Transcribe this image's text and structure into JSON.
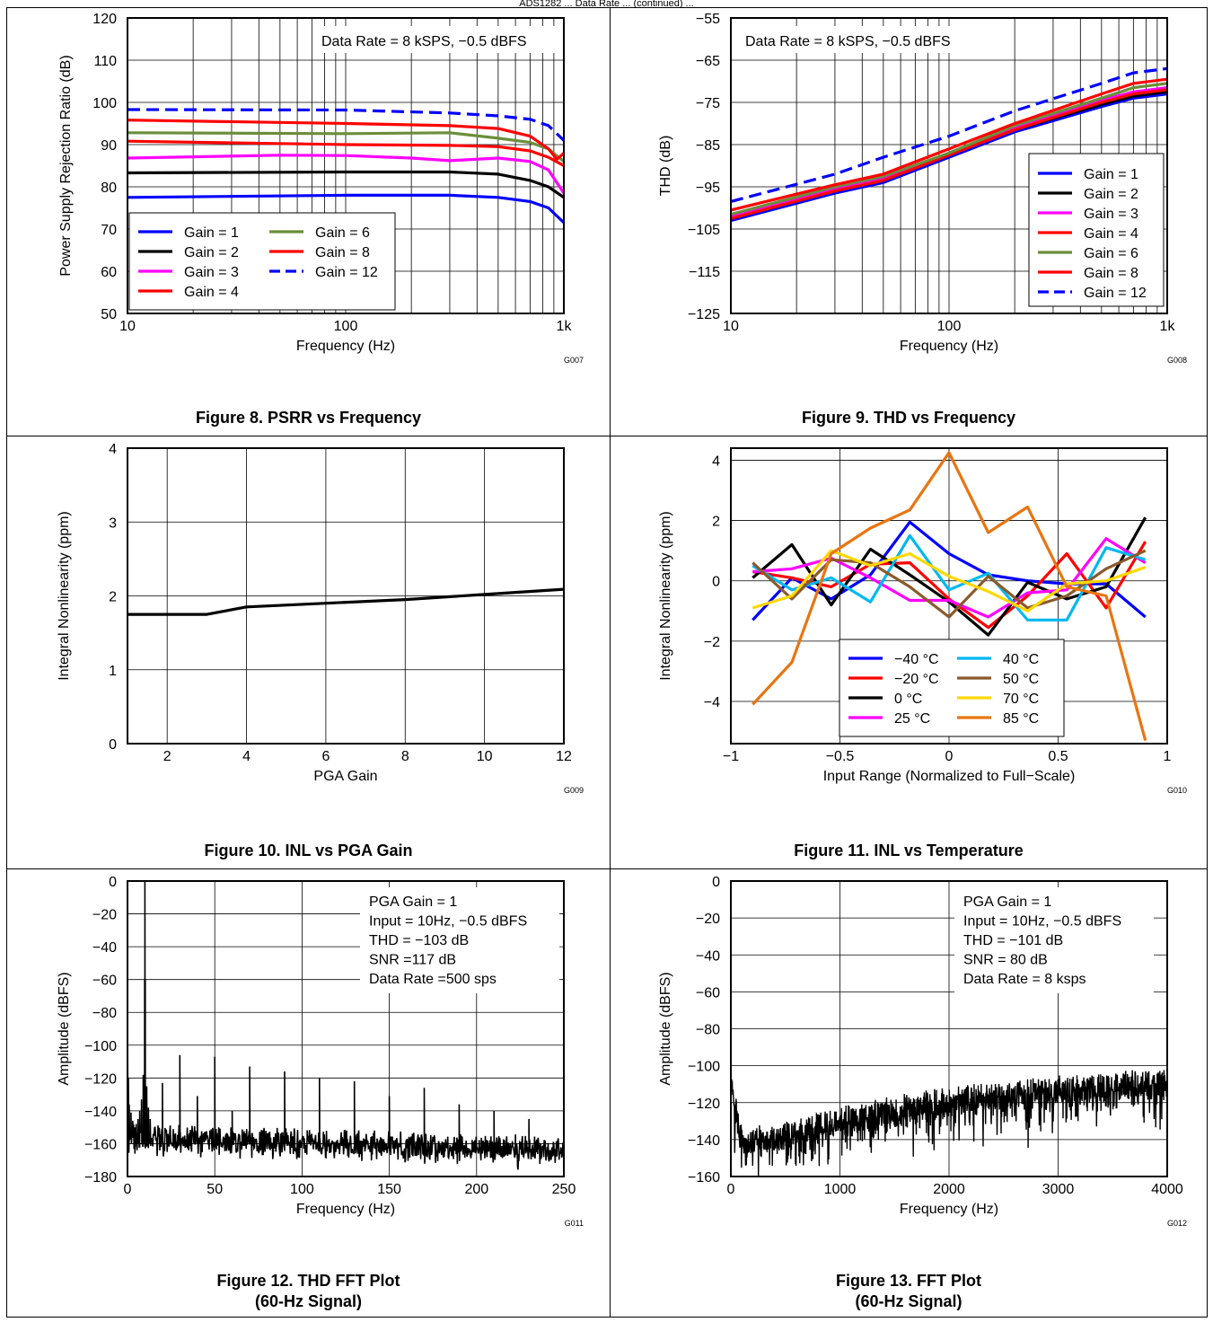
{
  "page_header": "ADS1282 ... Data Rate ... (continued) ...",
  "colors": {
    "blue": "#0000ff",
    "black": "#000000",
    "magenta": "#ff00ff",
    "red": "#ff0000",
    "green": "#6b8e3a",
    "cyan": "#00b8f0",
    "brown": "#8b5a2b",
    "yellow": "#ffd700",
    "orange": "#e87511"
  },
  "figures": [
    {
      "caption": "Figure 8. PSRR vs Frequency",
      "code": "G007"
    },
    {
      "caption": "Figure 9. THD vs Frequency",
      "code": "G008"
    },
    {
      "caption": "Figure 10. INL vs PGA Gain",
      "code": "G009"
    },
    {
      "caption": "Figure 11. INL vs Temperature",
      "code": "G010"
    },
    {
      "caption": "Figure 12. THD FFT Plot",
      "caption2": "(60-Hz Signal)",
      "code": "G011"
    },
    {
      "caption": "Figure 13. FFT Plot",
      "caption2": "(60-Hz Signal)",
      "code": "G012"
    }
  ],
  "chart_data": [
    {
      "type": "line",
      "title": "PSRR vs Frequency",
      "xlabel": "Frequency (Hz)",
      "ylabel": "Power Supply Rejection Ratio (dB)",
      "xscale": "log",
      "xlim": [
        10,
        1000
      ],
      "ylim": [
        50,
        120
      ],
      "xticks": [
        10,
        100,
        1000
      ],
      "xticklabels": [
        "10",
        "100",
        "1k"
      ],
      "yticks": [
        50,
        60,
        70,
        80,
        90,
        100,
        110,
        120
      ],
      "yticklabels": [
        "50",
        "60",
        "70",
        "80",
        "90",
        "100",
        "110",
        "120"
      ],
      "annotation": "Data Rate = 8 kSPS, −0.5 dBFS",
      "legend_position": "bottom-left",
      "legend_columns": 2,
      "grid": true,
      "series": [
        {
          "name": "Gain = 1",
          "color": "blue",
          "dash": false,
          "x": [
            10,
            100,
            300,
            500,
            700,
            850,
            1000
          ],
          "values": [
            77.5,
            78,
            78,
            77.5,
            76.5,
            75,
            71.5
          ]
        },
        {
          "name": "Gain = 2",
          "color": "black",
          "dash": false,
          "x": [
            10,
            100,
            300,
            500,
            700,
            850,
            1000
          ],
          "values": [
            83.3,
            83.5,
            83.5,
            83,
            81.5,
            80,
            77.5
          ]
        },
        {
          "name": "Gain = 3",
          "color": "magenta",
          "dash": false,
          "x": [
            10,
            50,
            100,
            200,
            300,
            500,
            700,
            850,
            1000
          ],
          "values": [
            86.8,
            87.5,
            87.4,
            86.8,
            86.2,
            86.8,
            86,
            84,
            78.5
          ]
        },
        {
          "name": "Gain = 4",
          "color": "red",
          "dash": false,
          "x": [
            10,
            100,
            300,
            500,
            700,
            850,
            1000
          ],
          "values": [
            90.8,
            90,
            89.8,
            89.5,
            88.5,
            87,
            85
          ]
        },
        {
          "name": "Gain = 6",
          "color": "green",
          "dash": false,
          "x": [
            10,
            100,
            300,
            500,
            700,
            850,
            1000
          ],
          "values": [
            92.8,
            92.6,
            92.8,
            91.5,
            90.5,
            89,
            86
          ]
        },
        {
          "name": "Gain = 8",
          "color": "red",
          "dash": false,
          "x": [
            10,
            100,
            300,
            500,
            700,
            850,
            930,
            1000
          ],
          "values": [
            95.8,
            95,
            94.5,
            93.8,
            92,
            89,
            86.5,
            88
          ]
        },
        {
          "name": "Gain = 12",
          "color": "blue",
          "dash": true,
          "x": [
            10,
            100,
            300,
            500,
            700,
            850,
            1000
          ],
          "values": [
            98.3,
            98.2,
            97.5,
            96.8,
            96,
            94.5,
            91
          ]
        }
      ]
    },
    {
      "type": "line",
      "title": "THD vs Frequency",
      "xlabel": "Frequency (Hz)",
      "ylabel": "THD (dB)",
      "xscale": "log",
      "xlim": [
        10,
        1000
      ],
      "ylim": [
        -125,
        -55
      ],
      "xticks": [
        10,
        100,
        1000
      ],
      "xticklabels": [
        "10",
        "100",
        "1k"
      ],
      "yticks": [
        -125,
        -115,
        -105,
        -95,
        -85,
        -75,
        -65,
        -55
      ],
      "yticklabels": [
        "−125",
        "−115",
        "−105",
        "−95",
        "−85",
        "−75",
        "−65",
        "−55"
      ],
      "annotation": "Data Rate = 8 kSPS, −0.5 dBFS",
      "legend_position": "right",
      "legend_columns": 1,
      "grid": true,
      "series": [
        {
          "name": "Gain = 1",
          "color": "blue",
          "dash": false,
          "x": [
            10,
            30,
            50,
            100,
            200,
            500,
            700,
            1000
          ],
          "values": [
            -103,
            -96.5,
            -94,
            -88,
            -82,
            -76,
            -74,
            -73
          ]
        },
        {
          "name": "Gain = 2",
          "color": "black",
          "dash": false,
          "x": [
            10,
            30,
            50,
            100,
            200,
            500,
            700,
            1000
          ],
          "values": [
            -102.5,
            -96,
            -93.5,
            -87.5,
            -81.5,
            -75.5,
            -73.5,
            -72.5
          ]
        },
        {
          "name": "Gain = 3",
          "color": "magenta",
          "dash": false,
          "x": [
            10,
            30,
            50,
            100,
            200,
            500,
            700,
            1000
          ],
          "values": [
            -102,
            -95.5,
            -93,
            -87,
            -81,
            -74.5,
            -72.5,
            -71.5
          ]
        },
        {
          "name": "Gain = 4",
          "color": "red",
          "dash": false,
          "x": [
            10,
            30,
            50,
            100,
            200,
            500,
            700,
            1000
          ],
          "values": [
            -102.5,
            -96,
            -93.5,
            -87.5,
            -81.5,
            -75,
            -73,
            -72
          ]
        },
        {
          "name": "Gain = 6",
          "color": "green",
          "dash": false,
          "x": [
            10,
            30,
            50,
            100,
            200,
            500,
            700,
            1000
          ],
          "values": [
            -101.5,
            -95,
            -92.5,
            -87,
            -80.5,
            -74,
            -71.5,
            -70.5
          ]
        },
        {
          "name": "Gain = 8",
          "color": "red",
          "dash": false,
          "x": [
            10,
            30,
            50,
            100,
            200,
            500,
            700,
            1000
          ],
          "values": [
            -100.5,
            -94.5,
            -92,
            -86,
            -80,
            -73,
            -70.5,
            -69.5
          ]
        },
        {
          "name": "Gain = 12",
          "color": "blue",
          "dash": true,
          "x": [
            10,
            30,
            50,
            100,
            200,
            500,
            700,
            1000
          ],
          "values": [
            -98.5,
            -92,
            -88,
            -83,
            -77,
            -70.5,
            -68,
            -67
          ]
        }
      ]
    },
    {
      "type": "line",
      "title": "INL vs PGA Gain",
      "xlabel": "PGA Gain",
      "ylabel": "Integral Nonlinearity (ppm)",
      "xlim": [
        1,
        12
      ],
      "ylim": [
        0,
        4
      ],
      "xticks": [
        2,
        4,
        6,
        8,
        10,
        12
      ],
      "xticklabels": [
        "2",
        "4",
        "6",
        "8",
        "10",
        "12"
      ],
      "yticks": [
        0,
        1,
        2,
        3,
        4
      ],
      "yticklabels": [
        "0",
        "1",
        "2",
        "3",
        "4"
      ],
      "grid": true,
      "series": [
        {
          "color": "black",
          "x": [
            1,
            2,
            3,
            4,
            6,
            8,
            10,
            12
          ],
          "values": [
            1.75,
            1.75,
            1.75,
            1.85,
            1.9,
            1.95,
            2.02,
            2.09
          ]
        }
      ]
    },
    {
      "type": "line",
      "title": "INL vs Temperature",
      "xlabel": "Input Range (Normalized to Full−Scale)",
      "ylabel": "Integral Nonlinearity (ppm)",
      "xlim": [
        -1,
        1
      ],
      "ylim": [
        -5.4,
        4.4
      ],
      "xticks": [
        -1,
        -0.5,
        0,
        0.5,
        1
      ],
      "xticklabels": [
        "−1",
        "−0.5",
        "0",
        "0.5",
        "1"
      ],
      "yticks": [
        -4,
        -2,
        0,
        2,
        4
      ],
      "yticklabels": [
        "−4",
        "−2",
        "0",
        "2",
        "4"
      ],
      "legend_position": "bottom-center",
      "legend_columns": 2,
      "grid": true,
      "x": [
        -0.9,
        -0.72,
        -0.54,
        -0.36,
        -0.18,
        0,
        0.18,
        0.36,
        0.54,
        0.72,
        0.9
      ],
      "series": [
        {
          "name": "−40 °C",
          "color": "blue",
          "values": [
            -1.3,
            0.1,
            -0.6,
            0.2,
            1.95,
            0.9,
            0.2,
            0,
            -0.1,
            -0.1,
            -1.2
          ]
        },
        {
          "name": "−20 °C",
          "color": "red",
          "values": [
            0.3,
            0.1,
            -0.2,
            0.55,
            0.6,
            -0.6,
            -1.55,
            -0.5,
            0.9,
            -0.9,
            1.3
          ]
        },
        {
          "name": "0 °C",
          "color": "black",
          "values": [
            0.1,
            1.2,
            -0.8,
            1.05,
            0.2,
            -0.7,
            -1.8,
            -0.05,
            -0.6,
            -0.2,
            2.1
          ]
        },
        {
          "name": "25 °C",
          "color": "magenta",
          "values": [
            0.3,
            0.4,
            0.75,
            0.1,
            -0.65,
            -0.65,
            -1.2,
            -0.4,
            -0.3,
            1.4,
            0.6
          ]
        },
        {
          "name": "40 °C",
          "color": "cyan",
          "values": [
            0.5,
            -0.3,
            0.1,
            -0.7,
            1.5,
            -0.3,
            0.25,
            -1.3,
            -1.3,
            1.1,
            0.7
          ]
        },
        {
          "name": "50 °C",
          "color": "brown",
          "values": [
            0.6,
            -0.6,
            0.7,
            0.6,
            -0.2,
            -1.2,
            0.15,
            -0.9,
            -0.5,
            0.4,
            1.0
          ]
        },
        {
          "name": "70 °C",
          "color": "yellow",
          "values": [
            -0.9,
            -0.5,
            1.0,
            0.5,
            0.9,
            0.15,
            -0.35,
            -1.0,
            -0.1,
            0,
            0.45
          ]
        },
        {
          "name": "85 °C",
          "color": "orange",
          "values": [
            -4.1,
            -2.7,
            0.9,
            1.75,
            2.35,
            4.25,
            1.6,
            2.45,
            -0.2,
            -0.5,
            -5.3
          ]
        }
      ]
    },
    {
      "type": "line",
      "title": "THD FFT Plot",
      "xlabel": "Frequency (Hz)",
      "ylabel": "Amplitude (dBFS)",
      "xlim": [
        0,
        250
      ],
      "ylim": [
        -180,
        0
      ],
      "xticks": [
        0,
        50,
        100,
        150,
        200,
        250
      ],
      "xticklabels": [
        "0",
        "50",
        "100",
        "150",
        "200",
        "250"
      ],
      "yticks": [
        -180,
        -160,
        -140,
        -120,
        -100,
        -80,
        -60,
        -40,
        -20,
        0
      ],
      "yticklabels": [
        "−180",
        "−160",
        "−140",
        "−120",
        "−100",
        "−80",
        "−60",
        "−40",
        "−20",
        "0"
      ],
      "annotations": [
        "PGA Gain = 1",
        "Input = 10Hz, −0.5 dBFS",
        "THD = −103 dB",
        "SNR =117 dB",
        "Data Rate =500 sps"
      ],
      "grid": true,
      "noise_floor": [
        {
          "x": 20,
          "y": -155
        },
        {
          "x": 250,
          "y": -162
        }
      ],
      "peaks": [
        {
          "x": 10,
          "y": -0.5
        },
        {
          "x": 20,
          "y": -123
        },
        {
          "x": 30,
          "y": -106
        },
        {
          "x": 40,
          "y": -131
        },
        {
          "x": 50,
          "y": -107
        },
        {
          "x": 60,
          "y": -140
        },
        {
          "x": 70,
          "y": -113
        },
        {
          "x": 90,
          "y": -116
        },
        {
          "x": 110,
          "y": -120
        },
        {
          "x": 130,
          "y": -122
        },
        {
          "x": 150,
          "y": -131
        },
        {
          "x": 170,
          "y": -126
        },
        {
          "x": 190,
          "y": -136
        },
        {
          "x": 210,
          "y": -140
        },
        {
          "x": 230,
          "y": -145
        }
      ]
    },
    {
      "type": "line",
      "title": "FFT Plot",
      "xlabel": "Frequency (Hz)",
      "ylabel": "Amplitude (dBFS)",
      "xlim": [
        0,
        4000
      ],
      "ylim": [
        -160,
        0
      ],
      "xticks": [
        0,
        1000,
        2000,
        3000,
        4000
      ],
      "xticklabels": [
        "0",
        "1000",
        "2000",
        "3000",
        "4000"
      ],
      "yticks": [
        -160,
        -140,
        -120,
        -100,
        -80,
        -60,
        -40,
        -20,
        0
      ],
      "yticklabels": [
        "−160",
        "−140",
        "−120",
        "−100",
        "−80",
        "−60",
        "−40",
        "−20",
        "0"
      ],
      "annotations": [
        "PGA Gain = 1",
        "Input = 10Hz, −0.5 dBFS",
        "THD = −101 dB",
        "SNR = 80 dB",
        "Data Rate = 8 ksps"
      ],
      "grid": true,
      "noise_floor": [
        {
          "x": 0,
          "y": -105
        },
        {
          "x": 100,
          "y": -140
        },
        {
          "x": 500,
          "y": -137
        },
        {
          "x": 1000,
          "y": -128
        },
        {
          "x": 2000,
          "y": -118
        },
        {
          "x": 3000,
          "y": -112
        },
        {
          "x": 4000,
          "y": -108
        }
      ]
    }
  ]
}
